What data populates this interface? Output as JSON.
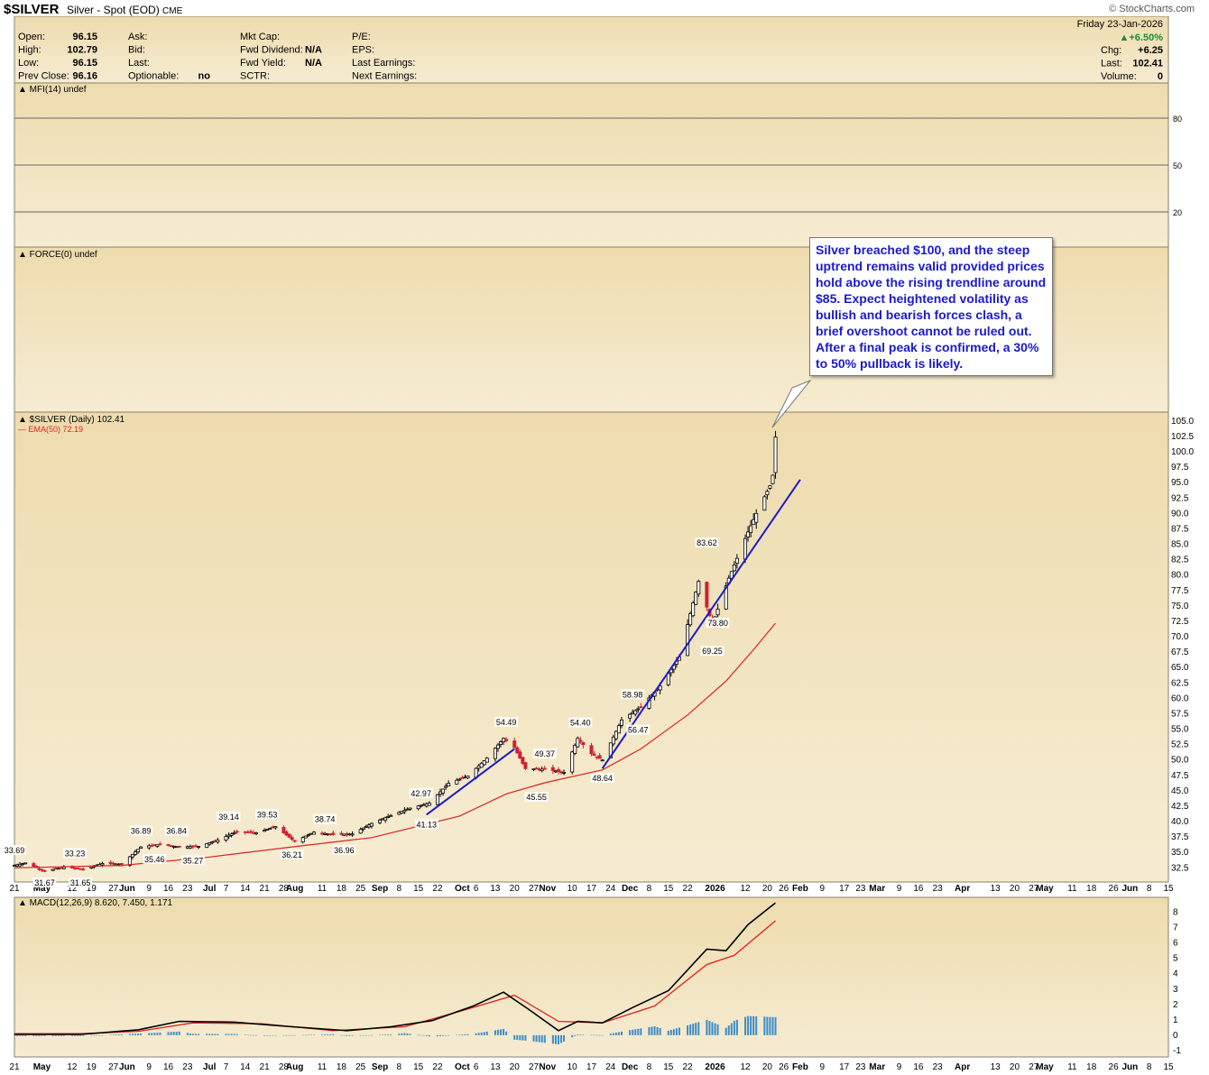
{
  "header": {
    "ticker": "$SILVER",
    "name": "Silver - Spot (EOD)",
    "exchange": "CME",
    "brand": "© StockCharts.com",
    "date": "Friday   23-Jan-2026",
    "change_pct": "▲+6.50%",
    "quote": [
      {
        "label": "Open:",
        "value": "96.15"
      },
      {
        "label": "High:",
        "value": "102.79"
      },
      {
        "label": "Low:",
        "value": "96.15"
      },
      {
        "label": "Prev Close:",
        "value": "96.16"
      }
    ],
    "bid_ask": [
      {
        "label": "Ask:",
        "value": ""
      },
      {
        "label": "Bid:",
        "value": ""
      },
      {
        "label": "Last:",
        "value": ""
      },
      {
        "label": "Optionable:",
        "value": "no"
      }
    ],
    "fundamentals": [
      {
        "label": "Mkt Cap:",
        "value": ""
      },
      {
        "label": "Fwd Dividend:",
        "value": "N/A"
      },
      {
        "label": "Fwd Yield:",
        "value": "N/A"
      },
      {
        "label": "SCTR:",
        "value": ""
      }
    ],
    "earnings": [
      {
        "label": "P/E:"
      },
      {
        "label": "EPS:"
      },
      {
        "label": "Last Earnings:"
      },
      {
        "label": "Next Earnings:"
      }
    ],
    "right": [
      {
        "label": "Chg:",
        "value": "+6.25"
      },
      {
        "label": "Last:",
        "value": "102.41"
      },
      {
        "label": "Volume:",
        "value": "0"
      }
    ]
  },
  "colors": {
    "panel_bg_top": "#eedcae",
    "panel_bg_bottom": "#f6ecd2",
    "up": "#000000",
    "down": "#cc2233",
    "ema": "#dd2222",
    "trendline": "#1a1acc",
    "macd": "#000000",
    "signal": "#e02020",
    "histogram": "#3a8ecb"
  },
  "chart_data": {
    "type": "line",
    "panels": {
      "mfi": {
        "label": "MFI(14) undef",
        "ticks": [
          "80",
          "50",
          "20"
        ]
      },
      "force": {
        "label": "FORCE(0) undef"
      },
      "price": {
        "label": "$SILVER (Daily) 102.41",
        "ema_label": "EMA(50) 72.19",
        "ylim": [
          30.5,
          106
        ],
        "y_ticks": [
          105.0,
          102.5,
          100.0,
          97.5,
          95.0,
          92.5,
          90.0,
          87.5,
          85.0,
          82.5,
          80.0,
          77.5,
          75.0,
          72.5,
          70.0,
          67.5,
          65.0,
          62.5,
          60.0,
          57.5,
          55.0,
          52.5,
          50.0,
          47.5,
          45.0,
          42.5,
          40.0,
          37.5,
          35.0,
          32.5
        ],
        "y_tick_labels": [
          "105.0",
          "102.5",
          "100.0",
          "97.5",
          "95.0",
          "92.5",
          "90.0",
          "87.5",
          "85.0",
          "82.5",
          "80.0",
          "77.5",
          "75.0",
          "72.5",
          "70.0",
          "67.5",
          "65.0",
          "62.5",
          "60.0",
          "57.5",
          "55.0",
          "52.5",
          "50.0",
          "47.5",
          "45.0",
          "42.5",
          "40.0",
          "37.5",
          "35.0",
          "32.5"
        ],
        "close_key": [
          [
            "2025-04-21",
            32.9
          ],
          [
            "2025-04-25",
            33.3
          ],
          [
            "2025-05-02",
            32.0
          ],
          [
            "2025-05-09",
            32.6
          ],
          [
            "2025-05-16",
            32.3
          ],
          [
            "2025-05-23",
            33.2
          ],
          [
            "2025-05-30",
            33.1
          ],
          [
            "2025-06-06",
            35.9
          ],
          [
            "2025-06-13",
            36.3
          ],
          [
            "2025-06-20",
            35.9
          ],
          [
            "2025-06-27",
            36.0
          ],
          [
            "2025-07-04",
            37.0
          ],
          [
            "2025-07-11",
            38.4
          ],
          [
            "2025-07-18",
            38.2
          ],
          [
            "2025-07-25",
            39.2
          ],
          [
            "2025-08-01",
            36.8
          ],
          [
            "2025-08-08",
            38.3
          ],
          [
            "2025-08-15",
            37.9
          ],
          [
            "2025-08-22",
            38.0
          ],
          [
            "2025-08-29",
            39.7
          ],
          [
            "2025-09-05",
            41.0
          ],
          [
            "2025-09-12",
            42.2
          ],
          [
            "2025-09-19",
            43.0
          ],
          [
            "2025-09-26",
            46.2
          ],
          [
            "2025-10-03",
            47.4
          ],
          [
            "2025-10-10",
            50.3
          ],
          [
            "2025-10-16",
            53.5
          ],
          [
            "2025-10-20",
            52.0
          ],
          [
            "2025-10-24",
            48.6
          ],
          [
            "2025-10-31",
            48.5
          ],
          [
            "2025-11-07",
            48.0
          ],
          [
            "2025-11-12",
            53.5
          ],
          [
            "2025-11-17",
            51.0
          ],
          [
            "2025-11-21",
            50.0
          ],
          [
            "2025-11-28",
            56.5
          ],
          [
            "2025-12-05",
            58.6
          ],
          [
            "2025-12-12",
            62.0
          ],
          [
            "2025-12-19",
            66.7
          ],
          [
            "2025-12-26",
            79.0
          ],
          [
            "2025-12-31",
            72.0
          ],
          [
            "2026-01-06",
            79.5
          ],
          [
            "2026-01-13",
            87.0
          ],
          [
            "2026-01-16",
            90.0
          ],
          [
            "2026-01-21",
            94.5
          ],
          [
            "2026-01-22",
            96.2
          ],
          [
            "2026-01-23",
            102.4
          ]
        ],
        "ema_key": [
          [
            "2025-04-21",
            32.5
          ],
          [
            "2025-05-30",
            32.9
          ],
          [
            "2025-06-30",
            34.2
          ],
          [
            "2025-07-31",
            35.9
          ],
          [
            "2025-08-29",
            37.4
          ],
          [
            "2025-09-30",
            40.9
          ],
          [
            "2025-10-17",
            44.5
          ],
          [
            "2025-10-31",
            46.3
          ],
          [
            "2025-11-21",
            48.4
          ],
          [
            "2025-12-05",
            51.8
          ],
          [
            "2025-12-22",
            57.3
          ],
          [
            "2026-01-05",
            62.8
          ],
          [
            "2026-01-15",
            67.9
          ],
          [
            "2026-01-23",
            72.2
          ]
        ],
        "labels": [
          {
            "text": "33.69",
            "date": "2025-04-21",
            "value": 33.69,
            "pos": "above"
          },
          {
            "text": "31.67",
            "date": "2025-05-02",
            "value": 31.67,
            "pos": "below"
          },
          {
            "text": "33.23",
            "date": "2025-05-13",
            "value": 33.23,
            "pos": "above"
          },
          {
            "text": "31.65",
            "date": "2025-05-15",
            "value": 31.65,
            "pos": "below"
          },
          {
            "text": "36.89",
            "date": "2025-06-06",
            "value": 36.89,
            "pos": "above"
          },
          {
            "text": "35.46",
            "date": "2025-06-11",
            "value": 35.46,
            "pos": "below"
          },
          {
            "text": "36.84",
            "date": "2025-06-19",
            "value": 36.84,
            "pos": "above"
          },
          {
            "text": "35.27",
            "date": "2025-06-25",
            "value": 35.27,
            "pos": "below"
          },
          {
            "text": "39.14",
            "date": "2025-07-08",
            "value": 39.14,
            "pos": "above"
          },
          {
            "text": "39.53",
            "date": "2025-07-22",
            "value": 39.53,
            "pos": "above"
          },
          {
            "text": "36.21",
            "date": "2025-07-31",
            "value": 36.21,
            "pos": "below"
          },
          {
            "text": "38.74",
            "date": "2025-08-12",
            "value": 38.74,
            "pos": "above"
          },
          {
            "text": "36.96",
            "date": "2025-08-19",
            "value": 36.96,
            "pos": "below"
          },
          {
            "text": "42.97",
            "date": "2025-09-16",
            "value": 42.97,
            "pos": "above"
          },
          {
            "text": "41.13",
            "date": "2025-09-18",
            "value": 41.13,
            "pos": "below"
          },
          {
            "text": "54.49",
            "date": "2025-10-17",
            "value": 54.49,
            "pos": "above"
          },
          {
            "text": "49.37",
            "date": "2025-10-31",
            "value": 49.37,
            "pos": "above"
          },
          {
            "text": "45.55",
            "date": "2025-10-28",
            "value": 45.55,
            "pos": "below"
          },
          {
            "text": "54.40",
            "date": "2025-11-13",
            "value": 54.4,
            "pos": "above"
          },
          {
            "text": "48.64",
            "date": "2025-11-21",
            "value": 48.64,
            "pos": "below"
          },
          {
            "text": "58.98",
            "date": "2025-12-02",
            "value": 58.98,
            "pos": "above"
          },
          {
            "text": "56.47",
            "date": "2025-12-04",
            "value": 56.47,
            "pos": "below"
          },
          {
            "text": "83.62",
            "date": "2025-12-29",
            "value": 83.62,
            "pos": "above"
          },
          {
            "text": "73.80",
            "date": "2026-01-02",
            "value": 73.8,
            "pos": "below"
          },
          {
            "text": "69.25",
            "date": "2025-12-31",
            "value": 69.25,
            "pos": "below"
          }
        ],
        "trendlines": [
          [
            [
              "2025-09-18",
              41.13
            ],
            [
              "2025-10-20",
              51.8
            ]
          ],
          [
            [
              "2025-11-21",
              48.64
            ],
            [
              "2026-02-01",
              95.5
            ]
          ]
        ]
      },
      "macd": {
        "label": "MACD(12,26,9) 8.620, 7.450, 1.171",
        "ylim": [
          -1.3,
          8.8
        ],
        "y_ticks": [
          8,
          7,
          6,
          5,
          4,
          3,
          2,
          1,
          0,
          -1
        ],
        "y_tick_labels": [
          "8",
          "7",
          "6",
          "5",
          "4",
          "3",
          "2",
          "1",
          "0",
          "-1"
        ],
        "macd_key": [
          [
            "2025-04-21",
            0.05
          ],
          [
            "2025-05-15",
            0.05
          ],
          [
            "2025-06-05",
            0.35
          ],
          [
            "2025-06-20",
            0.9
          ],
          [
            "2025-07-10",
            0.85
          ],
          [
            "2025-07-31",
            0.55
          ],
          [
            "2025-08-20",
            0.3
          ],
          [
            "2025-09-05",
            0.55
          ],
          [
            "2025-09-20",
            0.95
          ],
          [
            "2025-10-05",
            1.9
          ],
          [
            "2025-10-16",
            2.8
          ],
          [
            "2025-10-25",
            1.7
          ],
          [
            "2025-11-05",
            0.3
          ],
          [
            "2025-11-12",
            0.9
          ],
          [
            "2025-11-21",
            0.8
          ],
          [
            "2025-12-02",
            1.8
          ],
          [
            "2025-12-15",
            2.9
          ],
          [
            "2025-12-29",
            5.6
          ],
          [
            "2026-01-05",
            5.5
          ],
          [
            "2026-01-13",
            7.2
          ],
          [
            "2026-01-23",
            8.62
          ]
        ],
        "signal_key": [
          [
            "2025-04-21",
            0.1
          ],
          [
            "2025-05-15",
            0.1
          ],
          [
            "2025-06-05",
            0.25
          ],
          [
            "2025-06-25",
            0.8
          ],
          [
            "2025-07-20",
            0.75
          ],
          [
            "2025-08-15",
            0.3
          ],
          [
            "2025-09-10",
            0.55
          ],
          [
            "2025-10-01",
            1.6
          ],
          [
            "2025-10-20",
            2.6
          ],
          [
            "2025-11-05",
            0.9
          ],
          [
            "2025-11-21",
            0.8
          ],
          [
            "2025-12-10",
            1.9
          ],
          [
            "2025-12-29",
            4.6
          ],
          [
            "2026-01-08",
            5.2
          ],
          [
            "2026-01-23",
            7.45
          ]
        ]
      }
    },
    "x_axis": {
      "start": "2025-04-21",
      "end": "2026-06-15",
      "ticks": [
        {
          "label": "21",
          "date": "2025-04-21"
        },
        {
          "label": "May",
          "date": "2025-05-01",
          "bold": true
        },
        {
          "label": "12",
          "date": "2025-05-12"
        },
        {
          "label": "19",
          "date": "2025-05-19"
        },
        {
          "label": "27",
          "date": "2025-05-27"
        },
        {
          "label": "Jun",
          "date": "2025-06-01",
          "bold": true
        },
        {
          "label": "9",
          "date": "2025-06-09"
        },
        {
          "label": "16",
          "date": "2025-06-16"
        },
        {
          "label": "23",
          "date": "2025-06-23"
        },
        {
          "label": "Jul",
          "date": "2025-07-01",
          "bold": true
        },
        {
          "label": "7",
          "date": "2025-07-07"
        },
        {
          "label": "14",
          "date": "2025-07-14"
        },
        {
          "label": "21",
          "date": "2025-07-21"
        },
        {
          "label": "28",
          "date": "2025-07-28"
        },
        {
          "label": "Aug",
          "date": "2025-08-01",
          "bold": true
        },
        {
          "label": "11",
          "date": "2025-08-11"
        },
        {
          "label": "18",
          "date": "2025-08-18"
        },
        {
          "label": "25",
          "date": "2025-08-25"
        },
        {
          "label": "Sep",
          "date": "2025-09-01",
          "bold": true
        },
        {
          "label": "8",
          "date": "2025-09-08"
        },
        {
          "label": "15",
          "date": "2025-09-15"
        },
        {
          "label": "22",
          "date": "2025-09-22"
        },
        {
          "label": "Oct",
          "date": "2025-10-01",
          "bold": true
        },
        {
          "label": "6",
          "date": "2025-10-06"
        },
        {
          "label": "13",
          "date": "2025-10-13"
        },
        {
          "label": "20",
          "date": "2025-10-20"
        },
        {
          "label": "27",
          "date": "2025-10-27"
        },
        {
          "label": "Nov",
          "date": "2025-11-01",
          "bold": true
        },
        {
          "label": "10",
          "date": "2025-11-10"
        },
        {
          "label": "17",
          "date": "2025-11-17"
        },
        {
          "label": "24",
          "date": "2025-11-24"
        },
        {
          "label": "Dec",
          "date": "2025-12-01",
          "bold": true
        },
        {
          "label": "8",
          "date": "2025-12-08"
        },
        {
          "label": "15",
          "date": "2025-12-15"
        },
        {
          "label": "22",
          "date": "2025-12-22"
        },
        {
          "label": "2026",
          "date": "2026-01-01",
          "bold": true
        },
        {
          "label": "12",
          "date": "2026-01-12"
        },
        {
          "label": "20",
          "date": "2026-01-20"
        },
        {
          "label": "26",
          "date": "2026-01-26"
        },
        {
          "label": "Feb",
          "date": "2026-02-01",
          "bold": true
        },
        {
          "label": "9",
          "date": "2026-02-09"
        },
        {
          "label": "17",
          "date": "2026-02-17"
        },
        {
          "label": "23",
          "date": "2026-02-23"
        },
        {
          "label": "Mar",
          "date": "2026-03-01",
          "bold": true
        },
        {
          "label": "9",
          "date": "2026-03-09"
        },
        {
          "label": "16",
          "date": "2026-03-16"
        },
        {
          "label": "23",
          "date": "2026-03-23"
        },
        {
          "label": "Apr",
          "date": "2026-04-01",
          "bold": true
        },
        {
          "label": "13",
          "date": "2026-04-13"
        },
        {
          "label": "20",
          "date": "2026-04-20"
        },
        {
          "label": "27",
          "date": "2026-04-27"
        },
        {
          "label": "May",
          "date": "2026-05-01",
          "bold": true
        },
        {
          "label": "11",
          "date": "2026-05-11"
        },
        {
          "label": "18",
          "date": "2026-05-18"
        },
        {
          "label": "26",
          "date": "2026-05-26"
        },
        {
          "label": "Jun",
          "date": "2026-06-01",
          "bold": true
        },
        {
          "label": "8",
          "date": "2026-06-08"
        },
        {
          "label": "15",
          "date": "2026-06-15"
        }
      ]
    }
  },
  "annotation": {
    "text": "Silver breached $100, and the steep uptrend remains valid provided prices hold above the rising trendline around $85. Expect heightened volatility as bullish and bearish forces clash, a brief overshoot cannot be ruled out. After a final peak is confirmed, a 30% to 50% pullback is likely."
  }
}
